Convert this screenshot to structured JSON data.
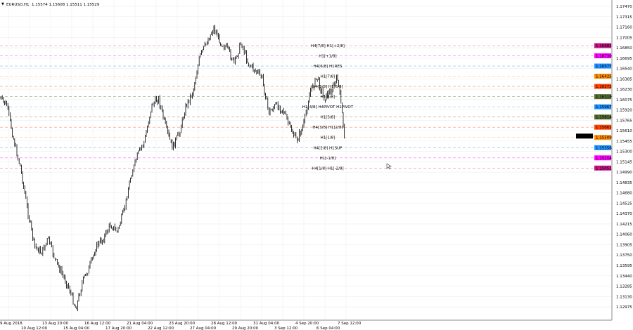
{
  "header": {
    "symbol": "EURUSD,H1",
    "prices": "1.15574 1.15608 1.15511 1.15529",
    "menu_icon": "triangle-down-icon"
  },
  "chart_data": {
    "type": "line",
    "title": "EURUSD,H1",
    "ylim": [
      1.129,
      1.176
    ],
    "grid": true,
    "y_ticks": [
      "1.17470",
      "1.17315",
      "1.17160",
      "1.17005",
      "1.16850",
      "1.16695",
      "1.16540",
      "1.16385",
      "1.16230",
      "1.16075",
      "1.15920",
      "1.15765",
      "1.15610",
      "1.15455",
      "1.15300",
      "1.15145",
      "1.14990",
      "1.14835",
      "1.14680",
      "1.14525",
      "1.14370",
      "1.14215",
      "1.14060",
      "1.13905",
      "1.13750",
      "1.13595",
      "1.13440",
      "1.13285",
      "1.13130",
      "1.12975"
    ],
    "x_ticks": [
      "9 Aug 2018",
      "10 Aug 12:00",
      "13 Aug 20:00",
      "15 Aug 04:00",
      "16 Aug 12:00",
      "17 Aug 20:00",
      "21 Aug 04:00",
      "22 Aug 12:00",
      "23 Aug 20:00",
      "27 Aug 04:00",
      "28 Aug 12:00",
      "29 Aug 20:00",
      "31 Aug 04:00",
      "3 Sep 12:00",
      "4 Sep 20:00",
      "6 Sep 04:00",
      "7 Sep 12:00"
    ],
    "price_path": [
      1.16094,
      1.15989,
      1.15464,
      1.15044,
      1.14414,
      1.13889,
      1.13784,
      1.13994,
      1.13679,
      1.13469,
      1.13259,
      1.12944,
      1.13364,
      1.13574,
      1.13889,
      1.13994,
      1.14204,
      1.14099,
      1.14414,
      1.14939,
      1.15254,
      1.15464,
      1.15989,
      1.16094,
      1.15674,
      1.15359,
      1.15569,
      1.15989,
      1.16199,
      1.16724,
      1.16934,
      1.17144,
      1.16934,
      1.16829,
      1.16619,
      1.16934,
      1.16619,
      1.16514,
      1.16409,
      1.15884,
      1.15989,
      1.15937,
      1.15674,
      1.15464,
      1.15674,
      1.16199,
      1.16409,
      1.16094,
      1.16199,
      1.16409,
      1.15529
    ],
    "current_price": "1.15529",
    "levels": [
      {
        "price": "1.16882",
        "label": "H4[7/8] H1[+2/8]",
        "color": "#c71585"
      },
      {
        "price": "1.16730",
        "label": "H1[+1/8]",
        "color": "#ff00ff"
      },
      {
        "price": "1.16577",
        "label": "H4[6/8] H1RES",
        "color": "#1e90ff"
      },
      {
        "price": "1.16425",
        "label": "H1[7/8]",
        "color": "#ff8c00"
      },
      {
        "price": "1.16272",
        "label": "H4[5/8] H1[6/8]",
        "color": "#ff4500"
      },
      {
        "price": "1.16119",
        "label": "H1[5/8]",
        "color": "#556b2f"
      },
      {
        "price": "1.15967",
        "label": "H1[4/8] H4PIVOT H1PIVOT",
        "color": "#1e90ff"
      },
      {
        "price": "1.15814",
        "label": "H1[3/8]",
        "color": "#556b2f"
      },
      {
        "price": "1.15662",
        "label": "H4[3/8] H1[2/8]",
        "color": "#ff4500"
      },
      {
        "price": "1.15509",
        "label": "H1[1/8]",
        "color": "#ff8c00"
      },
      {
        "price": "1.15356",
        "label": "H4[2/8] H1SUP",
        "color": "#1e90ff"
      },
      {
        "price": "1.15204",
        "label": "H1[-1/8]",
        "color": "#ff00ff"
      },
      {
        "price": "1.15051",
        "label": "H4[1/8] H1[-2/8]",
        "color": "#c71585"
      }
    ]
  }
}
